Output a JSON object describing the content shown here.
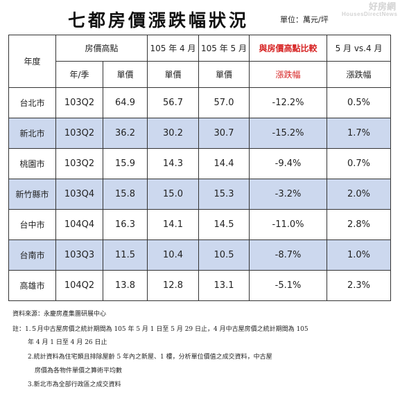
{
  "title": "七都房價漲跌幅狀況",
  "unit": "單位：萬元/坪",
  "watermark": {
    "main": "好房網",
    "sub": "HousesDirectNews"
  },
  "table": {
    "header_row1": {
      "year": "年度",
      "peak": "房價高點",
      "apr": "105 年 4 月",
      "may": "105 年 5 月",
      "compare": "與房價高點比較",
      "mom": "5 月 vs.4 月"
    },
    "header_row2": {
      "season": "年/季",
      "peak_price": "單價",
      "apr_price": "單價",
      "may_price": "單價",
      "compare_change": "漲跌幅",
      "mom_change": "漲跌幅"
    },
    "rows": [
      {
        "city": "台北市",
        "season": "103Q2",
        "peak": "64.9",
        "apr": "56.7",
        "may": "57.0",
        "vs_peak": "-12.2%",
        "mom": "0.5%"
      },
      {
        "city": "新北市",
        "season": "103Q2",
        "peak": "36.2",
        "apr": "30.2",
        "may": "30.7",
        "vs_peak": "-15.2%",
        "mom": "1.7%"
      },
      {
        "city": "桃園市",
        "season": "103Q2",
        "peak": "15.9",
        "apr": "14.3",
        "may": "14.4",
        "vs_peak": "-9.4%",
        "mom": "0.7%"
      },
      {
        "city": "新竹縣市",
        "season": "103Q4",
        "peak": "15.8",
        "apr": "15.0",
        "may": "15.3",
        "vs_peak": "-3.2%",
        "mom": "2.0%"
      },
      {
        "city": "台中市",
        "season": "104Q4",
        "peak": "16.3",
        "apr": "14.1",
        "may": "14.5",
        "vs_peak": "-11.0%",
        "mom": "2.8%"
      },
      {
        "city": "台南市",
        "season": "103Q3",
        "peak": "11.5",
        "apr": "10.4",
        "may": "10.5",
        "vs_peak": "-8.7%",
        "mom": "1.0%"
      },
      {
        "city": "高雄市",
        "season": "104Q2",
        "peak": "13.8",
        "apr": "12.8",
        "may": "13.1",
        "vs_peak": "-5.1%",
        "mom": "2.3%"
      }
    ]
  },
  "notes": {
    "source": "資料來源：永慶房產集團研展中心",
    "note1_a": "註：1.５月中古屋房價之統計期間為 105 年 5 月 1 日至 5 月 29 日止，4 月中古屋房價之統計期間為 105",
    "note1_b": "年 4 月 1 日至 4 月 26 日止",
    "note2_a": "2.統計資料為住宅類且排除屋齡 5 年內之新屋、1 樓，分析單位價值之成交資料，中古屋",
    "note2_b": "房價為各物件單價之算術平均數",
    "note3": "3.新北市為全部行政區之成交資料"
  }
}
